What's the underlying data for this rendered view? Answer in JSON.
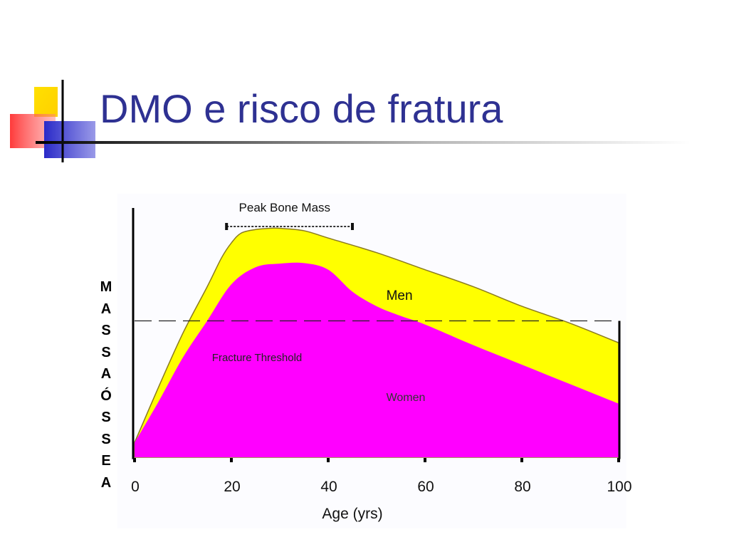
{
  "slide": {
    "title": "DMO e risco de fratura",
    "accent_colors": {
      "title": "#2e3192",
      "square_yellow": "#ffd700",
      "square_red": "#ff4040",
      "square_blue": "#3333cc"
    }
  },
  "chart_data": {
    "type": "area",
    "xlabel": "Age (yrs)",
    "ylabel_letters": [
      "M",
      "A",
      "S",
      "S",
      "A",
      "Ó",
      "S",
      "S",
      "E",
      "A"
    ],
    "xticks": [
      0,
      20,
      40,
      60,
      80,
      100
    ],
    "xlim": [
      0,
      100
    ],
    "ylim": [
      0,
      100
    ],
    "grid": false,
    "series": [
      {
        "name": "Men",
        "color": "#ffff00",
        "x": [
          0,
          5,
          10,
          15,
          18,
          20,
          22,
          25,
          28,
          30,
          35,
          40,
          50,
          60,
          70,
          80,
          90,
          100
        ],
        "values": [
          6,
          29,
          51,
          70,
          82,
          88,
          92,
          93.5,
          94,
          94,
          93,
          90,
          84,
          77,
          70,
          62,
          55,
          47
        ]
      },
      {
        "name": "Women",
        "color": "#ff00ff",
        "x": [
          0,
          5,
          10,
          15,
          20,
          25,
          30,
          35,
          40,
          45,
          50,
          55,
          60,
          70,
          80,
          90,
          100
        ],
        "values": [
          6,
          23,
          41,
          56,
          71,
          78,
          79.5,
          79.7,
          77,
          68,
          62,
          58,
          54.5,
          46,
          38,
          30,
          22
        ]
      }
    ],
    "annotations": {
      "peak_bone_mass": {
        "label": "Peak Bone Mass",
        "x_range": [
          19,
          45
        ]
      },
      "fracture_threshold": {
        "label": "Fracture Threshold",
        "y": 56
      }
    }
  }
}
